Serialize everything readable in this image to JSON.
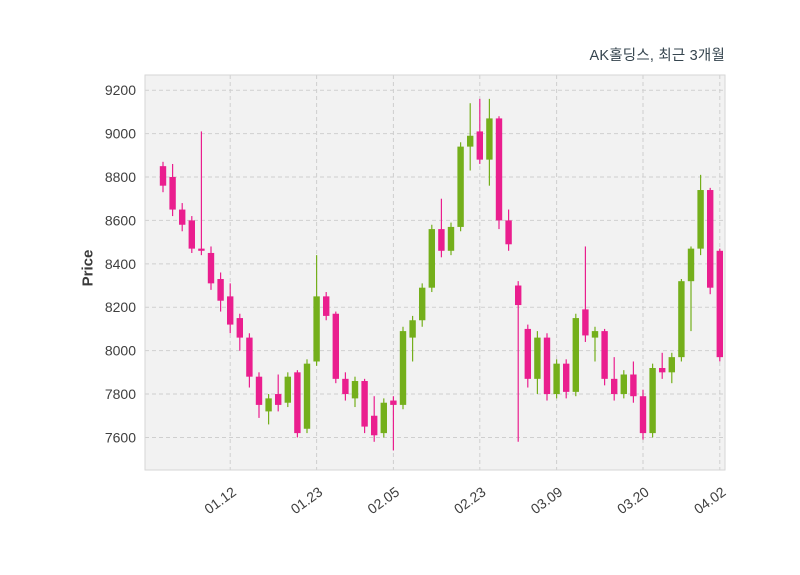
{
  "colors": {
    "up": "#74af1b",
    "down": "#ea1e8e",
    "grid": "#cfcfcf",
    "plot_bg": "#f2f2f2",
    "plot_border": "#d6d6d6",
    "tick_text": "#3f3f3f",
    "title_text": "#36454f"
  },
  "chart_data": {
    "type": "candlestick",
    "title": "AK홀딩스, 최근 3개월",
    "ylabel": "Price",
    "ylim": [
      7450,
      9270
    ],
    "y_ticks": [
      7600,
      7800,
      8000,
      8200,
      8400,
      8600,
      8800,
      9000,
      9200
    ],
    "x_tick_labels": [
      "01.12",
      "01.23",
      "02.05",
      "02.23",
      "03.09",
      "03.20",
      "04.02"
    ],
    "x_tick_indices": [
      7,
      16,
      24,
      33,
      41,
      50,
      58
    ],
    "grid": "dashed",
    "legend": "none",
    "candles_format": "[open, high, low, close]",
    "candles": [
      [
        8850,
        8870,
        8730,
        8760
      ],
      [
        8800,
        8860,
        8620,
        8650
      ],
      [
        8650,
        8680,
        8550,
        8580
      ],
      [
        8600,
        8620,
        8450,
        8470
      ],
      [
        8470,
        9010,
        8440,
        8460
      ],
      [
        8450,
        8480,
        8280,
        8310
      ],
      [
        8330,
        8360,
        8180,
        8230
      ],
      [
        8250,
        8310,
        8080,
        8120
      ],
      [
        8150,
        8170,
        8000,
        8060
      ],
      [
        8060,
        8080,
        7830,
        7880
      ],
      [
        7880,
        7900,
        7690,
        7750
      ],
      [
        7720,
        7800,
        7660,
        7780
      ],
      [
        7800,
        7890,
        7720,
        7750
      ],
      [
        7760,
        7900,
        7740,
        7880
      ],
      [
        7900,
        7910,
        7600,
        7620
      ],
      [
        7640,
        7960,
        7620,
        7940
      ],
      [
        7950,
        8440,
        7930,
        8250
      ],
      [
        8250,
        8270,
        8140,
        8160
      ],
      [
        8170,
        8180,
        7850,
        7870
      ],
      [
        7870,
        7900,
        7770,
        7800
      ],
      [
        7780,
        7880,
        7740,
        7860
      ],
      [
        7860,
        7870,
        7620,
        7650
      ],
      [
        7700,
        7790,
        7580,
        7610
      ],
      [
        7620,
        7780,
        7600,
        7760
      ],
      [
        7770,
        7790,
        7540,
        7750
      ],
      [
        7750,
        8110,
        7730,
        8090
      ],
      [
        8060,
        8160,
        7950,
        8140
      ],
      [
        8140,
        8310,
        8110,
        8290
      ],
      [
        8290,
        8580,
        8270,
        8560
      ],
      [
        8560,
        8700,
        8430,
        8460
      ],
      [
        8460,
        8590,
        8440,
        8570
      ],
      [
        8570,
        8960,
        8550,
        8940
      ],
      [
        8940,
        9140,
        8830,
        8990
      ],
      [
        9010,
        9160,
        8860,
        8880
      ],
      [
        8880,
        9160,
        8760,
        9070
      ],
      [
        9070,
        9080,
        8560,
        8600
      ],
      [
        8600,
        8650,
        8460,
        8490
      ],
      [
        8300,
        8320,
        7580,
        8210
      ],
      [
        8100,
        8120,
        7830,
        7870
      ],
      [
        7870,
        8090,
        7800,
        8060
      ],
      [
        8060,
        8080,
        7770,
        7800
      ],
      [
        7800,
        7960,
        7780,
        7940
      ],
      [
        7940,
        7960,
        7780,
        7810
      ],
      [
        7810,
        8170,
        7790,
        8150
      ],
      [
        8190,
        8480,
        8040,
        8070
      ],
      [
        8060,
        8110,
        7950,
        8090
      ],
      [
        8090,
        8100,
        7840,
        7870
      ],
      [
        7870,
        7970,
        7770,
        7800
      ],
      [
        7800,
        7910,
        7780,
        7890
      ],
      [
        7890,
        7950,
        7760,
        7790
      ],
      [
        7790,
        7820,
        7590,
        7620
      ],
      [
        7620,
        7940,
        7600,
        7920
      ],
      [
        7920,
        7990,
        7870,
        7900
      ],
      [
        7900,
        7990,
        7850,
        7970
      ],
      [
        7970,
        8330,
        7950,
        8320
      ],
      [
        8320,
        8480,
        8090,
        8470
      ],
      [
        8470,
        8810,
        8440,
        8740
      ],
      [
        8740,
        8750,
        8260,
        8290
      ],
      [
        8460,
        8470,
        7950,
        7970
      ]
    ]
  }
}
